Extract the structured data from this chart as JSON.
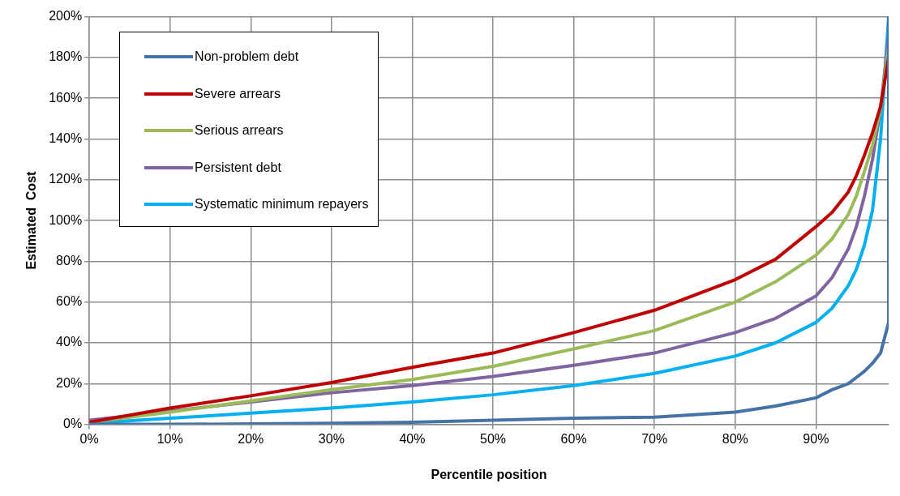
{
  "chart_data": {
    "type": "line",
    "xlabel": "Percentile position",
    "ylabel": "Estimated  Cost",
    "x": [
      0,
      10,
      20,
      30,
      40,
      50,
      60,
      70,
      80,
      85,
      90,
      92,
      94,
      95,
      96,
      97,
      98,
      99
    ],
    "series": [
      {
        "name": "Non-problem debt",
        "color": "#4572a7",
        "x": [
          0,
          10,
          20,
          30,
          40,
          50,
          60,
          70,
          80,
          85,
          90,
          92,
          94,
          95,
          96,
          97,
          98,
          99,
          99
        ],
        "values": [
          0,
          0,
          0.2,
          0.5,
          1,
          2,
          3,
          3.5,
          6,
          9,
          13,
          17,
          20,
          23,
          26,
          30,
          35,
          50,
          200
        ]
      },
      {
        "name": "Severe arrears",
        "color": "#c00000",
        "values": [
          1,
          8,
          14,
          20.5,
          28,
          35,
          45,
          56,
          71,
          81,
          97,
          104,
          114,
          122,
          132,
          143,
          156,
          180
        ]
      },
      {
        "name": "Serious arrears",
        "color": "#9bbb59",
        "values": [
          1,
          6,
          11.5,
          17,
          22,
          28.5,
          37,
          46,
          60,
          70,
          83,
          91,
          103,
          112,
          124,
          137,
          155,
          185
        ]
      },
      {
        "name": "Persistent debt",
        "color": "#8064a2",
        "values": [
          2,
          6.5,
          11,
          15.5,
          19,
          23.5,
          29,
          35,
          45,
          52,
          63,
          72,
          86,
          97,
          112,
          130,
          155,
          190
        ]
      },
      {
        "name": "Systematic minimum repayers",
        "color": "#00b0f0",
        "values": [
          0.5,
          3,
          5.5,
          8,
          11,
          14.5,
          19,
          25,
          33.5,
          40,
          50,
          57,
          68,
          76,
          88,
          105,
          140,
          200
        ]
      }
    ],
    "xlim": [
      0,
      99
    ],
    "ylim": [
      0,
      200
    ],
    "xticks": [
      {
        "value": 0,
        "label": "0%"
      },
      {
        "value": 10,
        "label": "10%"
      },
      {
        "value": 20,
        "label": "20%"
      },
      {
        "value": 30,
        "label": "30%"
      },
      {
        "value": 40,
        "label": "40%"
      },
      {
        "value": 50,
        "label": "50%"
      },
      {
        "value": 60,
        "label": "60%"
      },
      {
        "value": 70,
        "label": "70%"
      },
      {
        "value": 80,
        "label": "80%"
      },
      {
        "value": 90,
        "label": "90%"
      }
    ],
    "yticks": [
      {
        "value": 0,
        "label": "0%"
      },
      {
        "value": 20,
        "label": "20%"
      },
      {
        "value": 40,
        "label": "40%"
      },
      {
        "value": 60,
        "label": "60%"
      },
      {
        "value": 80,
        "label": "80%"
      },
      {
        "value": 100,
        "label": "100%"
      },
      {
        "value": 120,
        "label": "120%"
      },
      {
        "value": 140,
        "label": "140%"
      },
      {
        "value": 160,
        "label": "160%"
      },
      {
        "value": 180,
        "label": "180%"
      },
      {
        "value": 200,
        "label": "200%"
      }
    ],
    "grid": true,
    "legend": "top left"
  }
}
